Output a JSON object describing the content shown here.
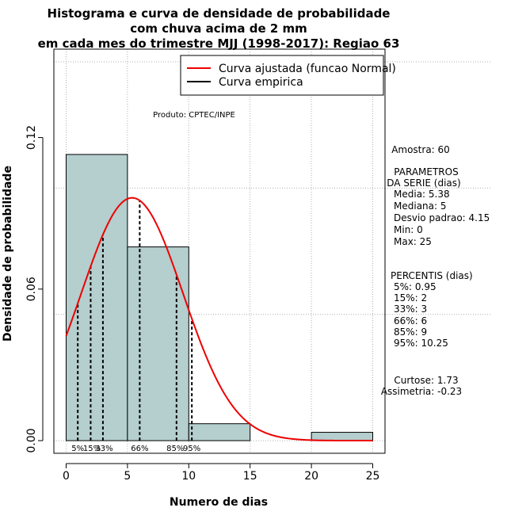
{
  "chart_data": {
    "type": "histogram",
    "title": [
      "Histograma e curva de densidade de probabilidade",
      "com chuva acima de 2 mm",
      "em cada mes do trimestre MJJ (1998-2017): Regiao 63"
    ],
    "xlabel": "Numero de dias",
    "ylabel": "Densidade de probabilidade",
    "xlim": [
      -1,
      26
    ],
    "ylim": [
      -0.005,
      0.155
    ],
    "xticks": [
      0,
      5,
      10,
      15,
      20,
      25
    ],
    "yticks": [
      0.0,
      0.06,
      0.12
    ],
    "ytick_labels": [
      "0.00",
      "0.06",
      "0.12"
    ],
    "bins": [
      {
        "x0": 0,
        "x1": 5,
        "density": 0.1133
      },
      {
        "x0": 5,
        "x1": 10,
        "density": 0.0767
      },
      {
        "x0": 10,
        "x1": 15,
        "density": 0.0067
      },
      {
        "x0": 15,
        "x1": 20,
        "density": 0.0
      },
      {
        "x0": 20,
        "x1": 25,
        "density": 0.0033
      }
    ],
    "normal_fit": {
      "mean": 5.38,
      "sd": 4.15,
      "xrange": [
        0,
        25
      ]
    },
    "percentile_lines": [
      0.95,
      2,
      3,
      6,
      9,
      10.25
    ],
    "percentile_labels": [
      {
        "text": "5%",
        "x": 0.95
      },
      {
        "text": "15%",
        "x": 2.1
      },
      {
        "text": "33%",
        "x": 3.1
      },
      {
        "text": "66%",
        "x": 6.0
      },
      {
        "text": "85%",
        "x": 8.9
      },
      {
        "text": "95%",
        "x": 10.25
      }
    ],
    "legend": [
      {
        "label": "Curva ajustada (funcao Normal)",
        "color": "#ee0000"
      },
      {
        "label": "Curva empirica",
        "color": "#000000"
      }
    ],
    "product_label": "Produto: CPTEC/INPE",
    "side_panel": [
      "Amostra: 60",
      "PARAMETROS",
      "DA SERIE (dias)",
      "Media: 5.38",
      "Mediana: 5",
      "Desvio padrao: 4.15",
      "Min: 0",
      "Max: 25",
      "PERCENTIS (dias)",
      "5%: 0.95",
      "15%: 2",
      "33%: 3",
      "66%: 6",
      "85%: 9",
      "95%: 10.25",
      "Curtose: 1.73",
      "Assimetria: -0.23"
    ],
    "colors": {
      "bar_fill": "#b5cece",
      "curve": "#ee0000",
      "grid": "#b0b0b0"
    }
  }
}
